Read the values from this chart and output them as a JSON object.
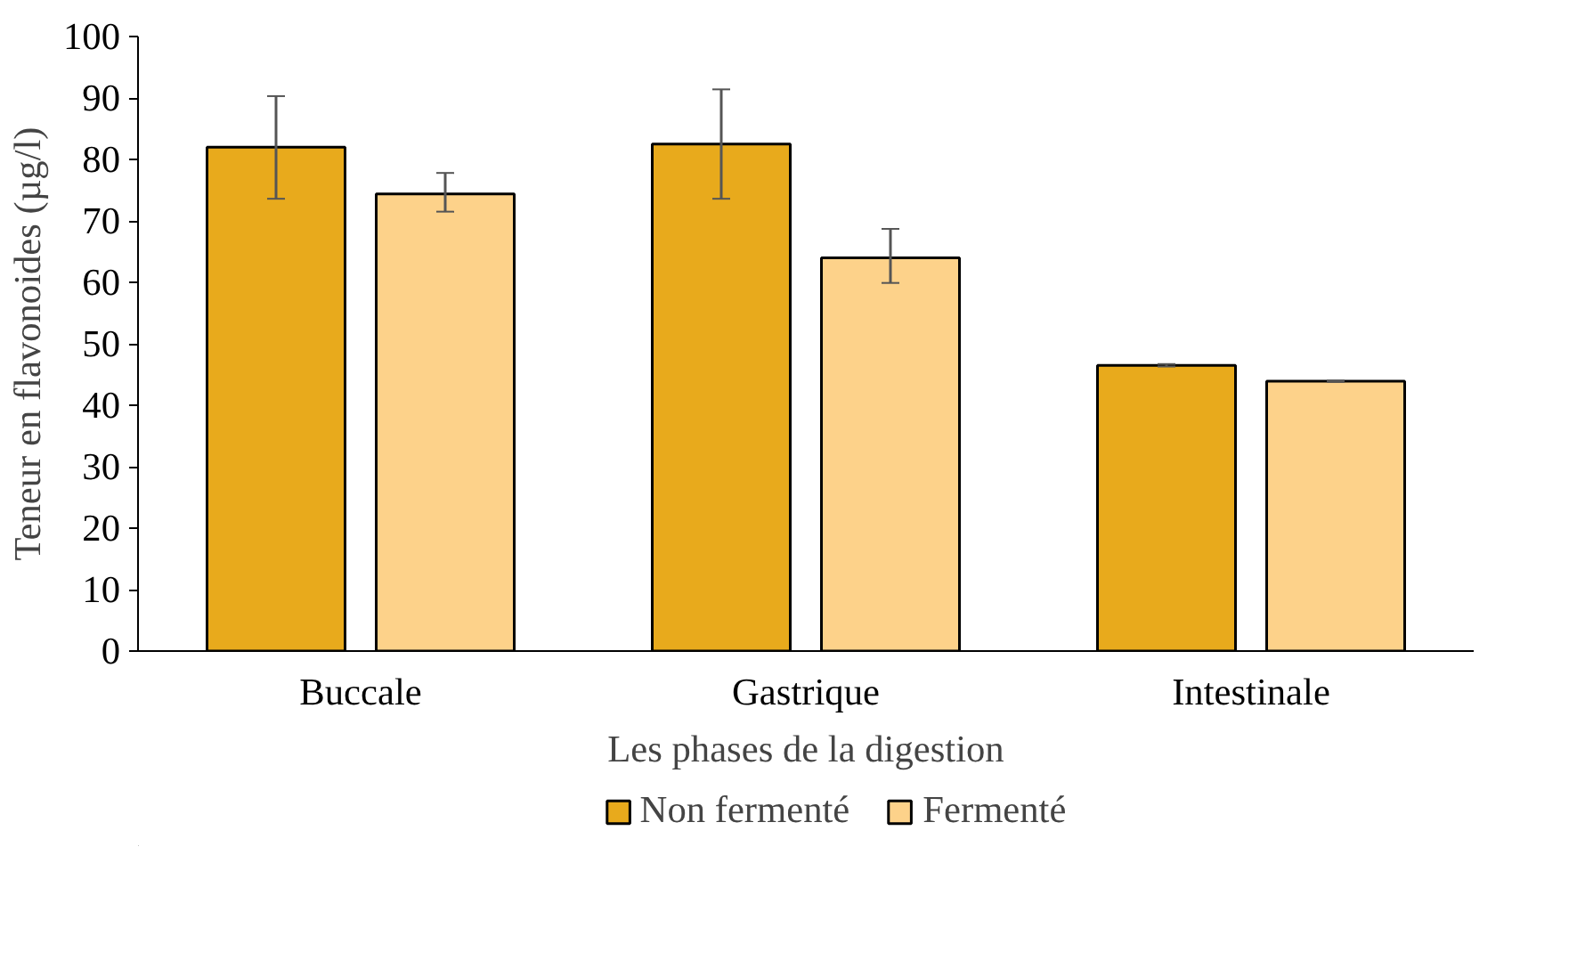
{
  "chart_data": {
    "type": "bar",
    "xlabel": "Les phases de la digestion",
    "ylabel": "Teneur en flavonoides (µg/l)",
    "categories": [
      "Buccale",
      "Gastrique",
      "Intestinale"
    ],
    "ylim": [
      0,
      100
    ],
    "yticks": [
      0,
      10,
      20,
      30,
      40,
      50,
      60,
      70,
      80,
      90,
      100
    ],
    "grid": false,
    "legend": "bottom",
    "series": [
      {
        "name": "Non fermenté",
        "color": "#e8aa1c",
        "values": [
          82,
          82.5,
          46.5
        ],
        "errors": [
          [
            73.6,
            90.3
          ],
          [
            73.6,
            91.4
          ],
          [
            46.3,
            46.7
          ]
        ]
      },
      {
        "name": "Fermenté",
        "color": "#fdd28a",
        "values": [
          74.4,
          64,
          43.9
        ],
        "errors": [
          [
            71.5,
            77.8
          ],
          [
            59.9,
            68.7
          ],
          [
            43.8,
            44.0
          ]
        ]
      }
    ]
  }
}
